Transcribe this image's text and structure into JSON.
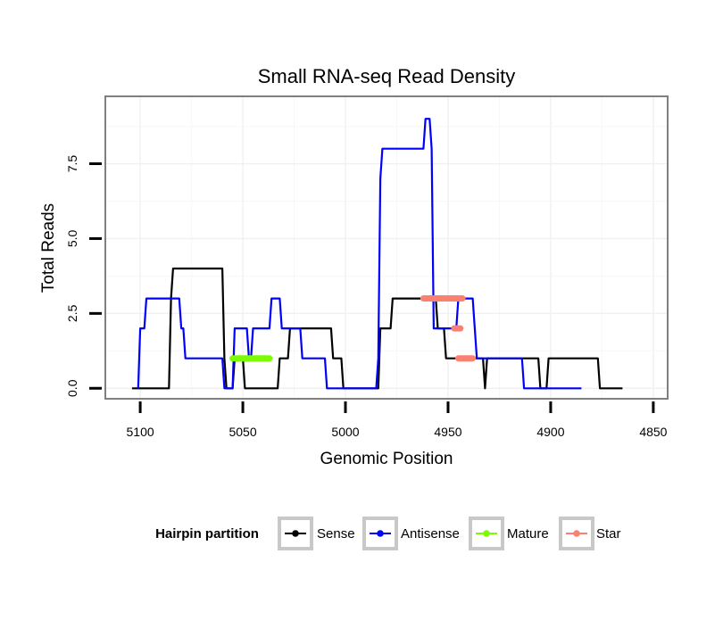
{
  "chart_data": {
    "type": "line",
    "title": "Small RNA-seq Read Density",
    "xlabel": "Genomic Position",
    "ylabel": "Total Reads",
    "xlim": [
      5117,
      4843
    ],
    "ylim": [
      -0.35,
      9.75
    ],
    "x_reversed": true,
    "grid": true,
    "x_ticks": [
      5100,
      5050,
      5000,
      4950,
      4900,
      4850
    ],
    "x_tick_labels": [
      "5100",
      "5050",
      "5000",
      "4950",
      "4900",
      "4850"
    ],
    "y_ticks": [
      0,
      2.5,
      5,
      7.5
    ],
    "y_tick_labels": [
      "0.0",
      "2.5",
      "5.0",
      "7.5"
    ],
    "legend": {
      "title": "Hairpin partition",
      "position": "bottom",
      "entries": [
        {
          "name": "Sense",
          "color": "#000000"
        },
        {
          "name": "Antisense",
          "color": "#0000ff"
        },
        {
          "name": "Mature",
          "color": "#7cfc00"
        },
        {
          "name": "Star",
          "color": "#fa8072"
        }
      ]
    },
    "series": [
      {
        "name": "Sense",
        "color": "#000000",
        "kind": "line",
        "points": [
          [
            5104,
            0
          ],
          [
            5086,
            0
          ],
          [
            5085,
            3
          ],
          [
            5084,
            4
          ],
          [
            5060,
            4
          ],
          [
            5059,
            1
          ],
          [
            5058,
            0
          ],
          [
            5055,
            0
          ],
          [
            5054,
            1
          ],
          [
            5050,
            1
          ],
          [
            5049,
            0
          ],
          [
            5033,
            0
          ],
          [
            5032,
            1
          ],
          [
            5028,
            1
          ],
          [
            5027,
            2
          ],
          [
            5007,
            2
          ],
          [
            5006,
            1
          ],
          [
            5002,
            1
          ],
          [
            5001,
            0
          ],
          [
            4984,
            0
          ],
          [
            4983,
            2
          ],
          [
            4978,
            2
          ],
          [
            4977,
            3
          ],
          [
            4956,
            3
          ],
          [
            4955,
            2
          ],
          [
            4952,
            2
          ],
          [
            4951,
            1
          ],
          [
            4933,
            1
          ],
          [
            4932,
            0
          ],
          [
            4931,
            1
          ],
          [
            4906,
            1
          ],
          [
            4905,
            0
          ],
          [
            4902,
            0
          ],
          [
            4901,
            1
          ],
          [
            4877,
            1
          ],
          [
            4876,
            0
          ],
          [
            4865,
            0
          ]
        ]
      },
      {
        "name": "Antisense",
        "color": "#0000ff",
        "kind": "line",
        "points": [
          [
            5101,
            0
          ],
          [
            5100,
            2
          ],
          [
            5098,
            2
          ],
          [
            5097,
            3
          ],
          [
            5081,
            3
          ],
          [
            5080,
            2
          ],
          [
            5079,
            2
          ],
          [
            5078,
            1
          ],
          [
            5060,
            1
          ],
          [
            5059,
            0
          ],
          [
            5055,
            0
          ],
          [
            5054,
            2
          ],
          [
            5048,
            2
          ],
          [
            5047,
            1
          ],
          [
            5046,
            1
          ],
          [
            5045,
            2
          ],
          [
            5037,
            2
          ],
          [
            5036,
            3
          ],
          [
            5032,
            3
          ],
          [
            5031,
            2
          ],
          [
            5022,
            2
          ],
          [
            5021,
            1
          ],
          [
            5010,
            1
          ],
          [
            5009,
            0
          ],
          [
            4985,
            0
          ],
          [
            4984,
            1
          ],
          [
            4983,
            7
          ],
          [
            4982,
            8
          ],
          [
            4962,
            8
          ],
          [
            4961,
            9
          ],
          [
            4959,
            9
          ],
          [
            4958,
            8
          ],
          [
            4957,
            2
          ],
          [
            4946,
            2
          ],
          [
            4945,
            3
          ],
          [
            4938,
            3
          ],
          [
            4937,
            2
          ],
          [
            4936,
            1
          ],
          [
            4914,
            1
          ],
          [
            4913,
            0
          ],
          [
            4885,
            0
          ]
        ]
      },
      {
        "name": "Mature",
        "color": "#7cfc00",
        "kind": "segment",
        "points": [
          [
            5055,
            1
          ],
          [
            5037,
            1
          ]
        ]
      },
      {
        "name": "Star",
        "color": "#fa8072",
        "kind": "segments",
        "segments": [
          [
            [
              4962,
              3
            ],
            [
              4943,
              3
            ]
          ],
          [
            [
              4947,
              2
            ],
            [
              4944,
              2
            ]
          ],
          [
            [
              4945,
              1
            ],
            [
              4938,
              1
            ]
          ]
        ]
      }
    ]
  }
}
